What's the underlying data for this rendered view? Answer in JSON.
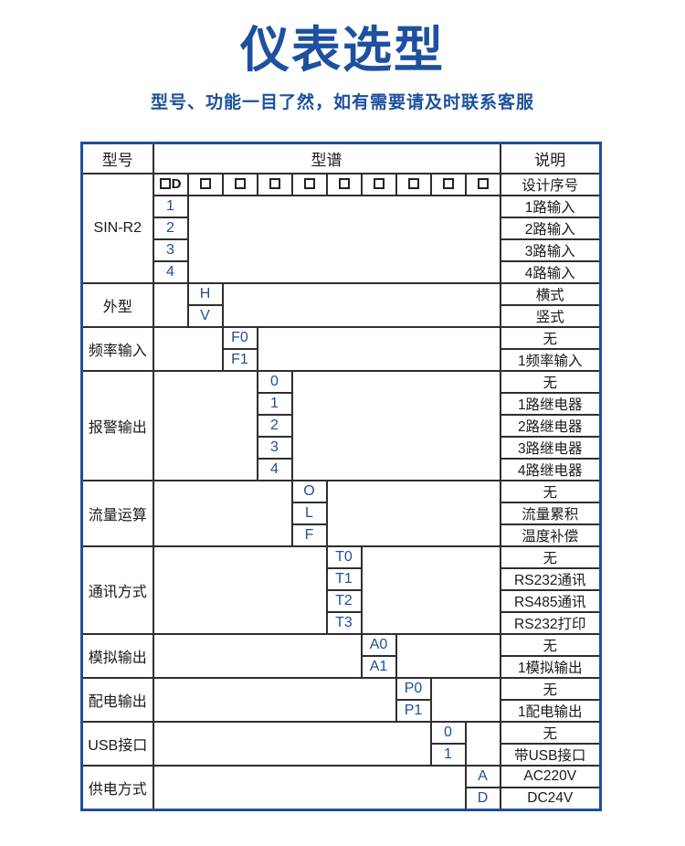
{
  "header": {
    "title": "仪表选型",
    "subtitle": "型号、功能一目了然，如有需要请及时联系客服"
  },
  "colors": {
    "title_blue": "#1d509e",
    "table_border_blue": "#1d4f9d",
    "code_text_blue": "#1f4d9b",
    "grid_line": "#2e2e2e"
  },
  "table": {
    "header": {
      "model_col": "型号",
      "spectrum_col": "型谱",
      "description_col": "说明"
    },
    "columns": {
      "subcol_count": 10
    },
    "boxes_row": {
      "first_cell_letter": "D",
      "box_glyph": "□",
      "box_count": 9,
      "desc": "设计序号"
    },
    "sections": [
      {
        "label": "SIN-R2",
        "code_col": 1,
        "has_boxes_row": true,
        "rows": [
          [
            "1",
            "1路输入"
          ],
          [
            "2",
            "2路输入"
          ],
          [
            "3",
            "3路输入"
          ],
          [
            "4",
            "4路输入"
          ]
        ]
      },
      {
        "label": "外型",
        "code_col": 2,
        "rows": [
          [
            "H",
            "横式"
          ],
          [
            "V",
            "竖式"
          ]
        ]
      },
      {
        "label": "频率输入",
        "code_col": 3,
        "rows": [
          [
            "F0",
            "无"
          ],
          [
            "F1",
            "1频率输入"
          ]
        ]
      },
      {
        "label": "报警输出",
        "code_col": 4,
        "rows": [
          [
            "0",
            "无"
          ],
          [
            "1",
            "1路继电器"
          ],
          [
            "2",
            "2路继电器"
          ],
          [
            "3",
            "3路继电器"
          ],
          [
            "4",
            "4路继电器"
          ]
        ]
      },
      {
        "label": "流量运算",
        "code_col": 5,
        "rows": [
          [
            "O",
            "无"
          ],
          [
            "L",
            "流量累积"
          ],
          [
            "F",
            "温度补偿"
          ]
        ]
      },
      {
        "label": "通讯方式",
        "code_col": 6,
        "rows": [
          [
            "T0",
            "无"
          ],
          [
            "T1",
            "RS232通讯"
          ],
          [
            "T2",
            "RS485通讯"
          ],
          [
            "T3",
            "RS232打印"
          ]
        ]
      },
      {
        "label": "模拟输出",
        "code_col": 7,
        "rows": [
          [
            "A0",
            "无"
          ],
          [
            "A1",
            "1模拟输出"
          ]
        ]
      },
      {
        "label": "配电输出",
        "code_col": 8,
        "rows": [
          [
            "P0",
            "无"
          ],
          [
            "P1",
            "1配电输出"
          ]
        ]
      },
      {
        "label": "USB接口",
        "code_col": 9,
        "rows": [
          [
            "0",
            "无"
          ],
          [
            "1",
            "带USB接口"
          ]
        ]
      },
      {
        "label": "供电方式",
        "code_col": 10,
        "rows": [
          [
            "A",
            "AC220V"
          ],
          [
            "D",
            "DC24V"
          ]
        ]
      }
    ]
  }
}
